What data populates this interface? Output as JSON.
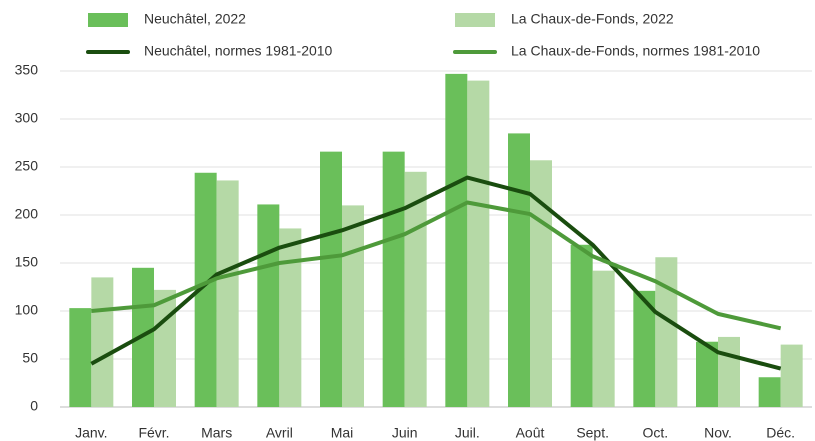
{
  "chart_data": {
    "type": "bar",
    "categories": [
      "Janv.",
      "Févr.",
      "Mars",
      "Avril",
      "Mai",
      "Juin",
      "Juil.",
      "Août",
      "Sept.",
      "Oct.",
      "Nov.",
      "Déc."
    ],
    "series": [
      {
        "name": "Neuchâtel, 2022",
        "type": "bar",
        "color": "#6abf5a",
        "values": [
          103,
          145,
          244,
          211,
          266,
          266,
          347,
          285,
          169,
          121,
          68,
          31
        ]
      },
      {
        "name": "La Chaux-de-Fonds, 2022",
        "type": "bar",
        "color": "#b5d9a6",
        "values": [
          135,
          122,
          236,
          186,
          210,
          245,
          340,
          257,
          142,
          156,
          73,
          65
        ]
      },
      {
        "name": "Neuchâtel, normes 1981-2010",
        "type": "line",
        "color": "#1a4d0f",
        "values": [
          45,
          81,
          138,
          166,
          184,
          207,
          239,
          222,
          169,
          99,
          57,
          40
        ]
      },
      {
        "name": "La Chaux-de-Fonds, normes 1981-2010",
        "type": "line",
        "color": "#4e9a3a",
        "values": [
          100,
          106,
          134,
          150,
          158,
          180,
          213,
          201,
          157,
          131,
          97,
          82
        ]
      }
    ],
    "ylim": [
      0,
      350
    ],
    "yticks": [
      0,
      50,
      100,
      150,
      200,
      250,
      300,
      350
    ],
    "grid": true
  }
}
